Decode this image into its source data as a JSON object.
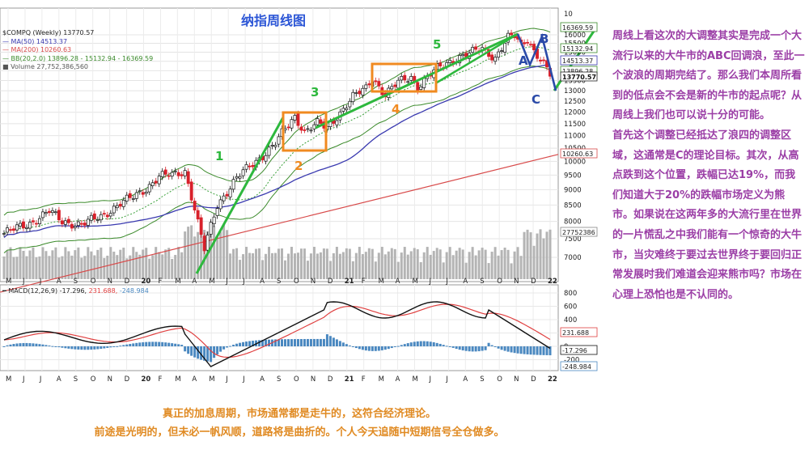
{
  "chart_title": "纳指周线图",
  "legend": {
    "symbol_line": "$COMPQ (Weekly) 13770.57",
    "ma50": "MA(50) 14513.37",
    "ma200": "MA(200) 10260.63",
    "bb": "BB(20,2.0) 13896.28 - 15132.94 - 16369.59",
    "volume": "Volume 27,752,386,560",
    "macd": "MACD(12,26,9) -17.296,",
    "macd_signal": "231.688,",
    "macd_hist": "-248.984"
  },
  "price_axis": {
    "ticks": [
      "16000",
      "15500",
      "15000",
      "14500",
      "14000",
      "13500",
      "13000",
      "12500",
      "12000",
      "11500",
      "11000",
      "10500",
      "10000",
      "9500",
      "9000",
      "8500",
      "8000",
      "7500",
      "7000"
    ],
    "top_partial": "10"
  },
  "price_badges": [
    "16369.59",
    "15132.94",
    "14513.37",
    "13896.28",
    "13770.57",
    "10260.63",
    "27752386"
  ],
  "macd_axis": {
    "ticks": [
      "800",
      "600",
      "400",
      "200",
      "0",
      "-200"
    ]
  },
  "macd_badges": [
    "231.688",
    "-17.296",
    "-248.984"
  ],
  "x_labels": [
    "M",
    "J",
    "J",
    "A",
    "S",
    "O",
    "N",
    "D",
    "20",
    "F",
    "M",
    "A",
    "M",
    "J",
    "J",
    "A",
    "S",
    "O",
    "N",
    "D",
    "21",
    "F",
    "M",
    "A",
    "M",
    "J",
    "J",
    "A",
    "S",
    "O",
    "N",
    "D",
    "22"
  ],
  "wave_labels": {
    "w1": "1",
    "w2": "2",
    "w3": "3",
    "w4": "4",
    "w5": "5",
    "wa": "A",
    "wb": "B",
    "wc": "C"
  },
  "colors": {
    "up_candle": "#111111",
    "down_candle": "#d8202a",
    "ma50": "#3a3ab0",
    "ma200": "#d84a4a",
    "bollinger": "#3a8a2a",
    "bb_mid": "#3aa03a",
    "volume": "#b4b4b4",
    "macd_line": "#111111",
    "signal_line": "#e04040",
    "histogram": "#4a88c0",
    "wave_trend": "#2db83d",
    "wave_box": "#f08a20",
    "abc_line": "#2a4aa8",
    "commentary": "#9b3ea6",
    "footer": "#e08a22"
  },
  "commentary": [
    "周线上看这次的大调整其实是完成一个大流行以来的大牛市的ABC回调浪，至此一个波浪的周期完结了。那么我们本周所看到的低点会不会是新的牛市的起点呢？从周线上我们也可以说十分的可能。",
    "首先这个调整已经抵达了浪四的调整区域，这通常是C的理论目标。其次，从高点跌到这个位置，跌幅已达19%，而我们知道大于20%的跌幅市场定义为熊市。如果说在这两年多的大流行里在世界的一片慌乱之中我们能有一个惊奇的大牛市，当灾难终于要过去世界终于要回归正常发展时我们难道会迎来熊市吗？市场在心理上恐怕也是不认同的。"
  ],
  "footer": [
    "真正的加息周期，市场通常都是走牛的，这符合经济理论。",
    "前途是光明的，但未必一帆风顺，道路将是曲折的。个人今天追随中短期信号全仓做多。"
  ],
  "chart_data": {
    "type": "line",
    "title": "纳指周线图",
    "series": [
      {
        "name": "$COMPQ (Weekly)",
        "x": [
          "2019-05",
          "2019-06",
          "2019-07",
          "2019-08",
          "2019-09",
          "2019-10",
          "2019-11",
          "2019-12",
          "2020-01",
          "2020-02",
          "2020-03",
          "2020-04",
          "2020-05",
          "2020-06",
          "2020-07",
          "2020-08",
          "2020-09",
          "2020-10",
          "2020-11",
          "2020-12",
          "2021-01",
          "2021-02",
          "2021-03",
          "2021-04",
          "2021-05",
          "2021-06",
          "2021-07",
          "2021-08",
          "2021-09",
          "2021-10",
          "2021-11",
          "2021-12",
          "2022-01"
        ],
        "values": [
          7650,
          7950,
          8200,
          8000,
          8050,
          8250,
          8600,
          8950,
          9250,
          9550,
          7500,
          8550,
          9300,
          9900,
          10750,
          11700,
          11100,
          11250,
          11950,
          12800,
          13100,
          13600,
          13100,
          13900,
          13300,
          14300,
          14700,
          15000,
          14750,
          15300,
          15900,
          15700,
          13770
        ]
      },
      {
        "name": "MA(50)",
        "values": [
          7200,
          7300,
          7400,
          7500,
          7600,
          7700,
          7800,
          7950,
          8100,
          8250,
          8350,
          8450,
          8600,
          8750,
          8950,
          9200,
          9450,
          9700,
          9950,
          10250,
          10550,
          10850,
          11150,
          11450,
          11750,
          12050,
          12350,
          12650,
          12950,
          13250,
          13600,
          13950,
          14513
        ]
      },
      {
        "name": "MA(200)",
        "values": [
          6200,
          6300,
          6400,
          6500,
          6600,
          6700,
          6800,
          6900,
          7000,
          7100,
          7200,
          7300,
          7400,
          7500,
          7600,
          7700,
          7800,
          7900,
          8000,
          8150,
          8300,
          8450,
          8600,
          8750,
          8900,
          9050,
          9200,
          9400,
          9600,
          9800,
          10000,
          10150,
          10260
        ]
      }
    ],
    "macd": {
      "macd_last": -17.296,
      "signal_last": 231.688,
      "histogram_last": -248.984
    },
    "volume_last": 27752386560
  }
}
